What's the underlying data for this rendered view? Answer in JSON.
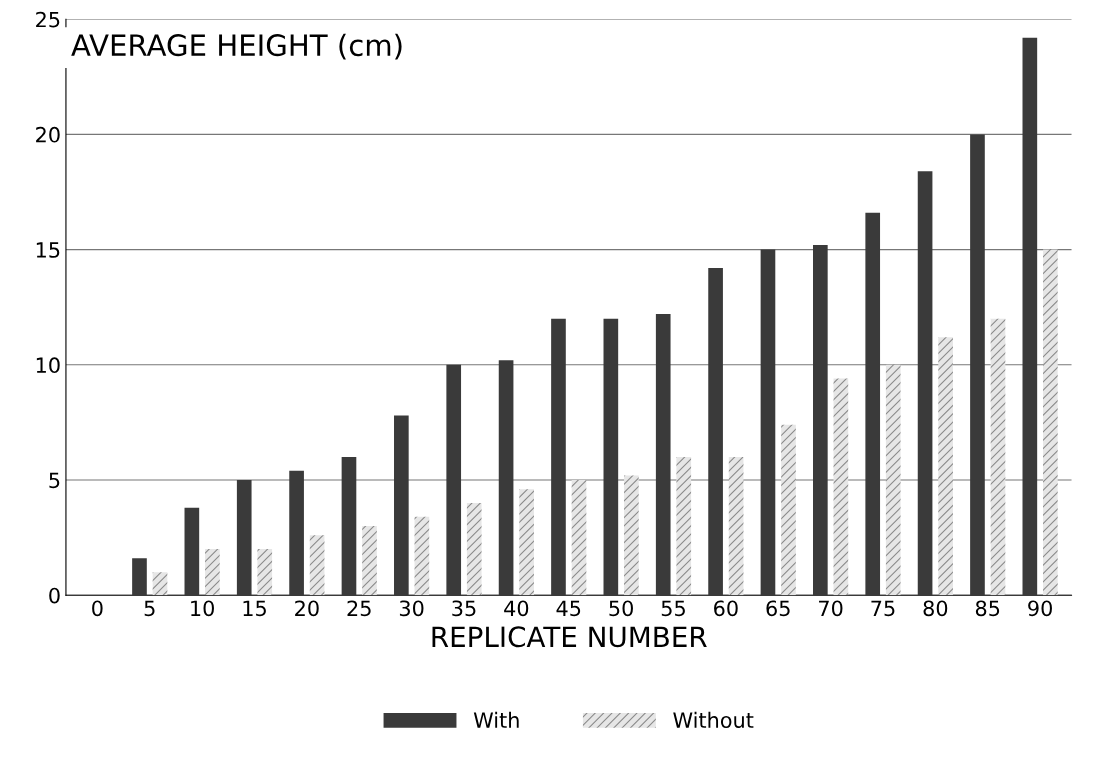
{
  "chart_data": {
    "type": "bar",
    "ylabel": "AVERAGE HEIGHT (cm)",
    "xlabel": "REPLICATE NUMBER",
    "categories": [
      "0",
      "5",
      "10",
      "15",
      "20",
      "25",
      "30",
      "35",
      "40",
      "45",
      "50",
      "55",
      "60",
      "65",
      "70",
      "75",
      "80",
      "85",
      "90"
    ],
    "series": [
      {
        "name": "With",
        "color": "#3a3a3a",
        "values": [
          null,
          1.6,
          3.8,
          5.0,
          5.4,
          6.0,
          7.8,
          10.0,
          10.2,
          12.0,
          12.0,
          12.2,
          14.2,
          15.0,
          15.2,
          16.6,
          18.4,
          20.0,
          24.2
        ]
      },
      {
        "name": "Without",
        "color": "#e6e6e6",
        "values": [
          null,
          1.0,
          2.0,
          2.0,
          2.6,
          3.0,
          3.4,
          4.0,
          4.6,
          5.0,
          5.2,
          6.0,
          6.0,
          7.4,
          9.4,
          10.0,
          11.2,
          12.0,
          15.0
        ]
      }
    ],
    "ylim": [
      0,
      25
    ],
    "yticks": [
      0,
      5,
      10,
      15,
      20,
      25
    ],
    "grid": "y",
    "legend": "bottom"
  }
}
